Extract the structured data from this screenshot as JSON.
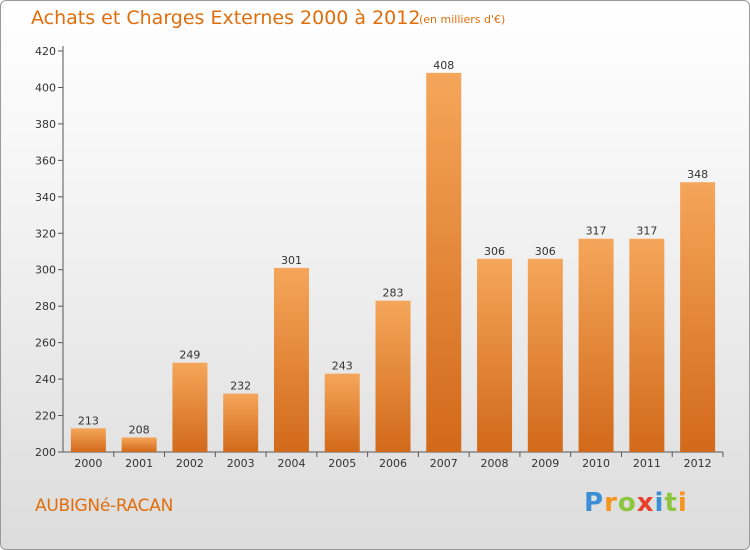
{
  "title": "Achats et Charges Externes 2000 à 2012",
  "unit_note": "(en milliers d'€)",
  "commune": "AUBIGNé-RACAN",
  "logo": {
    "letters": [
      "P",
      "r",
      "o",
      "x",
      "i",
      "t",
      "i"
    ],
    "colors": [
      "#3a8fd6",
      "#f7941d",
      "#8cc63f",
      "#e8402e",
      "#3a8fd6",
      "#8cc63f",
      "#f7941d"
    ]
  },
  "colors": {
    "accent": "#e06e0c",
    "bar_top": "#f5a65a",
    "bar_bottom": "#d2691a"
  },
  "chart_data": {
    "type": "bar",
    "title": "Achats et Charges Externes 2000 à 2012",
    "xlabel": "",
    "ylabel": "",
    "categories": [
      "2000",
      "2001",
      "2002",
      "2003",
      "2004",
      "2005",
      "2006",
      "2007",
      "2008",
      "2009",
      "2010",
      "2011",
      "2012"
    ],
    "values": [
      213,
      208,
      249,
      232,
      301,
      243,
      283,
      408,
      306,
      306,
      317,
      317,
      348
    ],
    "ylim": [
      200,
      420
    ],
    "yticks": [
      200,
      220,
      240,
      260,
      280,
      300,
      320,
      340,
      360,
      380,
      400,
      420
    ],
    "grid": false,
    "legend": "none"
  }
}
